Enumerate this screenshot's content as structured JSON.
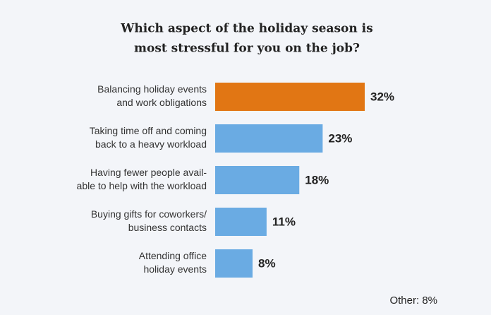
{
  "chart_data": {
    "type": "bar",
    "orientation": "horizontal",
    "title": [
      "Which aspect of the holiday season is",
      "most stressful for you on the job?"
    ],
    "categories": [
      [
        "Balancing holiday events",
        "and work obligations"
      ],
      [
        "Taking time off and coming",
        "back to a heavy workload"
      ],
      [
        "Having fewer people avail-",
        "able to help with the workload"
      ],
      [
        "Buying gifts for coworkers/",
        "business contacts"
      ],
      [
        "Attending office",
        "holiday events"
      ]
    ],
    "values": [
      32,
      23,
      18,
      11,
      8
    ],
    "value_labels": [
      "32%",
      "23%",
      "18%",
      "11%",
      "8%"
    ],
    "colors": [
      "#e17614",
      "#6aabe3",
      "#6aabe3",
      "#6aabe3",
      "#6aabe3"
    ],
    "xlim": [
      0,
      32
    ],
    "annotation": "Other: 8%"
  }
}
